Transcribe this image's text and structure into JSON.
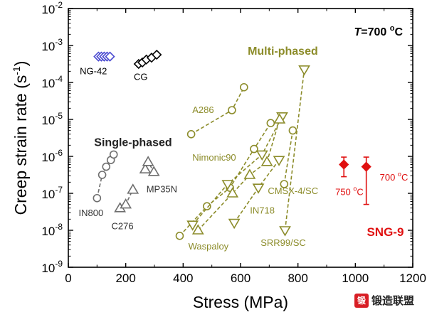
{
  "chart_data": {
    "type": "scatter",
    "title": "T=700 oC",
    "title_var": "T",
    "title_rest": "=700 ",
    "title_sup": "o",
    "title_unit": "C",
    "xlabel": "Stress (MPa)",
    "ylabel_main": "Creep strain rate (s",
    "ylabel_sup": "-1",
    "ylabel_end": ")",
    "xlim": [
      0,
      1200
    ],
    "ylim_log10": [
      -9,
      -2
    ],
    "x_ticks": [
      "0",
      "200",
      "400",
      "600",
      "800",
      "1000",
      "1200"
    ],
    "y_ticks": [
      {
        "base": "10",
        "exp": "-9",
        "log": -9
      },
      {
        "base": "10",
        "exp": "-8",
        "log": -8
      },
      {
        "base": "10",
        "exp": "-7",
        "log": -7
      },
      {
        "base": "10",
        "exp": "-6",
        "log": -6
      },
      {
        "base": "10",
        "exp": "-5",
        "log": -5
      },
      {
        "base": "10",
        "exp": "-4",
        "log": -4
      },
      {
        "base": "10",
        "exp": "-3",
        "log": -3
      },
      {
        "base": "10",
        "exp": "-2",
        "log": -2
      }
    ],
    "group_labels": [
      {
        "text": "Multi-phased",
        "color": "#8c8c2a",
        "x": 625,
        "log": -3.25
      },
      {
        "text": "Single-phased",
        "color": "#222222",
        "x": 90,
        "log": -5.72
      }
    ],
    "series": [
      {
        "name": "NG-42",
        "marker": "diamond",
        "color": "#4a4ad0",
        "connect": false,
        "points": [
          [
            105,
            -3.3
          ],
          [
            115,
            -3.3
          ],
          [
            125,
            -3.3
          ],
          [
            135,
            -3.3
          ],
          [
            145,
            -3.3
          ]
        ]
      },
      {
        "name": "CG",
        "marker": "diamond",
        "color": "#000000",
        "connect": false,
        "points": [
          [
            245,
            -3.5
          ],
          [
            258,
            -3.46
          ],
          [
            272,
            -3.38
          ],
          [
            290,
            -3.33
          ],
          [
            308,
            -3.25
          ]
        ]
      },
      {
        "name": "A286",
        "marker": "circle",
        "color": "#8c8c2a",
        "connect": true,
        "points": [
          [
            428,
            -5.4
          ],
          [
            570,
            -4.75
          ],
          [
            612,
            -4.13
          ]
        ]
      },
      {
        "name": "Nimonic90",
        "marker": "circle",
        "color": "#8c8c2a",
        "connect": true,
        "points": [
          [
            388,
            -8.15
          ],
          [
            483,
            -7.35
          ],
          [
            563,
            -6.85
          ],
          [
            647,
            -5.8
          ],
          [
            705,
            -5.1
          ]
        ]
      },
      {
        "name": "Waspaloy",
        "marker": "tri-down",
        "color": "#8c8c2a",
        "connect": true,
        "points": [
          [
            433,
            -7.85
          ],
          [
            555,
            -6.75
          ],
          [
            675,
            -5.95
          ],
          [
            745,
            -4.92
          ]
        ]
      },
      {
        "name": "IN718",
        "marker": "tri-up",
        "color": "#8c8c2a",
        "connect": true,
        "points": [
          [
            452,
            -8.0
          ],
          [
            572,
            -7.0
          ],
          [
            632,
            -6.5
          ],
          [
            692,
            -6.15
          ],
          [
            736,
            -5.0
          ]
        ]
      },
      {
        "name": "CMSX-4/SC",
        "marker": "circle",
        "color": "#8c8c2a",
        "connect": true,
        "points": [
          [
            752,
            -6.75
          ],
          [
            782,
            -5.3
          ]
        ]
      },
      {
        "name": "SRR99/SC",
        "marker": "tri-down",
        "color": "#8c8c2a",
        "connect": true,
        "points": [
          [
            578,
            -7.8
          ],
          [
            662,
            -6.85
          ],
          [
            734,
            -6.1
          ]
        ]
      },
      {
        "name": "SRR99/SC (steep)",
        "marker": "tri-down",
        "color": "#8c8c2a",
        "connect": true,
        "line_only_label": true,
        "points": [
          [
            755,
            -8.0
          ],
          [
            822,
            -3.65
          ]
        ]
      },
      {
        "name": "IN800",
        "marker": "circle",
        "color": "#6e6e6e",
        "connect": true,
        "points": [
          [
            100,
            -7.13
          ],
          [
            118,
            -6.5
          ],
          [
            132,
            -6.28
          ],
          [
            148,
            -6.1
          ],
          [
            158,
            -5.95
          ]
        ]
      },
      {
        "name": "C276",
        "marker": "tri-up",
        "color": "#6e6e6e",
        "connect": true,
        "points": [
          [
            180,
            -7.4
          ],
          [
            200,
            -7.3
          ],
          [
            225,
            -6.9
          ]
        ]
      },
      {
        "name": "MP35N",
        "marker": "tri-up",
        "color": "#6e6e6e",
        "connect": true,
        "points": [
          [
            268,
            -6.35
          ],
          [
            278,
            -6.15
          ],
          [
            298,
            -6.42
          ]
        ]
      },
      {
        "name": "SNG-9",
        "marker": "diamond-filled",
        "color": "#e01010",
        "connect": false,
        "points": [
          [
            960,
            -6.22
          ],
          [
            1038,
            -6.28
          ]
        ],
        "error_log": [
          [
            -6.55,
            -6.02
          ],
          [
            -7.3,
            -6.02
          ]
        ]
      }
    ],
    "annotations": [
      {
        "text": "NG-42",
        "color": "#000000",
        "x": 40,
        "log": -3.78,
        "size": 13
      },
      {
        "text": "CG",
        "color": "#000000",
        "x": 228,
        "log": -3.93,
        "size": 13
      },
      {
        "text": "A286",
        "color": "#8c8c2a",
        "x": 432,
        "log": -4.83,
        "size": 13
      },
      {
        "text": "Nimonic90",
        "color": "#8c8c2a",
        "x": 432,
        "log": -6.12,
        "size": 13
      },
      {
        "text": "MP35N",
        "color": "#333333",
        "x": 272,
        "log": -6.97,
        "size": 13
      },
      {
        "text": "IN800",
        "color": "#333333",
        "x": 36,
        "log": -7.62,
        "size": 13
      },
      {
        "text": "C276",
        "color": "#333333",
        "x": 150,
        "log": -7.97,
        "size": 13
      },
      {
        "text": "CMSX-4/SC",
        "color": "#8c8c2a",
        "x": 695,
        "log": -7.02,
        "size": 13
      },
      {
        "text": "IN718",
        "color": "#8c8c2a",
        "x": 633,
        "log": -7.55,
        "size": 13
      },
      {
        "text": "Waspaloy",
        "color": "#8c8c2a",
        "x": 418,
        "log": -8.52,
        "size": 13
      },
      {
        "text": "SRR99/SC",
        "color": "#8c8c2a",
        "x": 670,
        "log": -8.42,
        "size": 13
      }
    ],
    "sng_labels": [
      {
        "main": "750 ",
        "sup": "o",
        "end": "C",
        "color": "#e01010",
        "x": 930,
        "log": -7.05
      },
      {
        "main": "700 ",
        "sup": "o",
        "end": "C",
        "color": "#e01010",
        "x": 1085,
        "log": -6.65
      }
    ],
    "sng_title": {
      "text": "SNG-9",
      "color": "#e01010",
      "x": 1040,
      "log": -8.15
    }
  },
  "watermark": {
    "mark": "锻",
    "text": "锻造联盟"
  }
}
